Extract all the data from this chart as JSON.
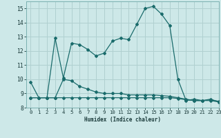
{
  "xlabel": "Humidex (Indice chaleur)",
  "background_color": "#cde8e8",
  "grid_color": "#b0d0d0",
  "line_color": "#1a6b6b",
  "xlim": [
    -0.5,
    23
  ],
  "ylim": [
    8,
    15.5
  ],
  "xticks": [
    0,
    1,
    2,
    3,
    4,
    5,
    6,
    7,
    8,
    9,
    10,
    11,
    12,
    13,
    14,
    15,
    16,
    17,
    18,
    19,
    20,
    21,
    22,
    23
  ],
  "yticks": [
    8,
    9,
    10,
    11,
    12,
    13,
    14,
    15
  ],
  "line1_x": [
    0,
    1,
    2,
    3,
    4,
    5,
    6,
    7,
    8,
    9,
    10,
    11,
    12,
    13,
    14,
    15,
    16,
    17,
    18,
    19,
    20,
    21,
    22,
    23
  ],
  "line1_y": [
    9.8,
    8.7,
    8.7,
    12.9,
    10.1,
    12.55,
    12.45,
    12.1,
    11.65,
    11.85,
    12.7,
    12.9,
    12.8,
    13.9,
    15.0,
    15.15,
    14.6,
    13.8,
    10.0,
    8.5,
    8.6,
    8.5,
    8.6,
    8.4
  ],
  "line2_x": [
    0,
    1,
    2,
    3,
    4,
    5,
    6,
    7,
    8,
    9,
    10,
    11,
    12,
    13,
    14,
    15,
    16,
    17,
    18,
    19,
    20,
    21,
    22,
    23
  ],
  "line2_y": [
    8.7,
    8.7,
    8.7,
    8.7,
    10.0,
    9.9,
    9.5,
    9.3,
    9.1,
    9.0,
    9.0,
    9.0,
    8.9,
    8.9,
    8.9,
    8.9,
    8.85,
    8.8,
    8.7,
    8.6,
    8.5,
    8.5,
    8.55,
    8.45
  ],
  "line3_x": [
    0,
    1,
    2,
    3,
    4,
    5,
    6,
    7,
    8,
    9,
    10,
    11,
    12,
    13,
    14,
    15,
    16,
    17,
    18,
    19,
    20,
    21,
    22,
    23
  ],
  "line3_y": [
    8.7,
    8.7,
    8.7,
    8.7,
    8.7,
    8.7,
    8.7,
    8.7,
    8.7,
    8.7,
    8.7,
    8.7,
    8.7,
    8.7,
    8.7,
    8.7,
    8.7,
    8.7,
    8.65,
    8.55,
    8.5,
    8.5,
    8.5,
    8.4
  ]
}
